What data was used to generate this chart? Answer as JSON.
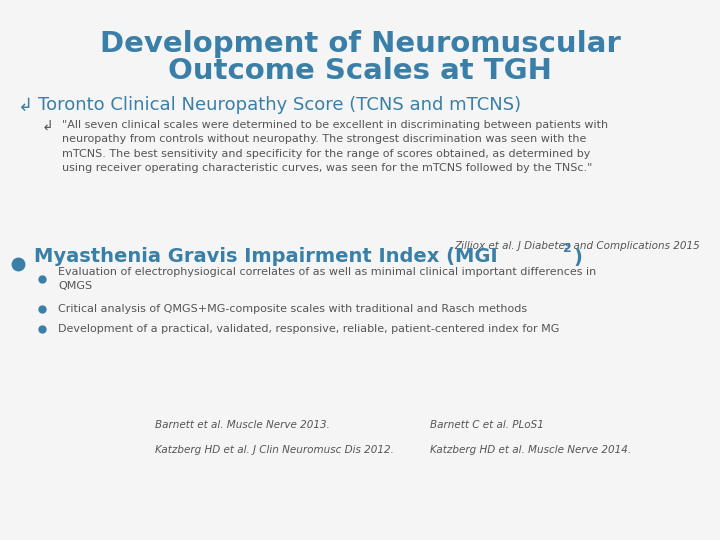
{
  "title_line1": "Development of Neuromuscular",
  "title_line2": "Outcome Scales at TGH",
  "title_color": "#3a7fa8",
  "bg_color": "#f5f5f5",
  "section1_symbol": "↲",
  "section1_text": "Toronto Clinical Neuropathy Score (TCNS and mTCNS)",
  "section1_color": "#3a7fa8",
  "subsection1_symbol": "↲",
  "subsection1_text": "\"All seven clinical scales were determined to be excellent in discriminating between patients with\nneuropathy from controls without neuropathy. The strongest discrimination was seen with the\nmTCNS. The best sensitivity and specificity for the range of scores obtained, as determined by\nusing receiver operating characteristic curves, was seen for the mTCNS followed by the TNSc.\"",
  "subsection1_color": "#555555",
  "citation1": "Zilliox et al. J Diabetes and Complications 2015",
  "citation1_color": "#555555",
  "section2_main": "Myasthenia Gravis Impairment Index (MGI",
  "section2_super": "2",
  "section2_close": ")",
  "section2_color": "#3a7fa8",
  "bullet_color": "#3a7fa8",
  "sub_bullet_texts": [
    "Evaluation of electrophysiogical correlates of as well as minimal clinical important differences in\nQMGS",
    "Critical analysis of QMGS+MG-composite scales with traditional and Rasch methods",
    "Development of a practical, validated, responsive, reliable, patient-centered index for MG"
  ],
  "sub_bullet_color": "#555555",
  "citations_col1": [
    "Barnett et al. Muscle Nerve 2013.",
    "Katzberg HD et al. J Clin Neuromusc Dis 2012."
  ],
  "citations_col2": [
    "Barnett C et al. PLoS1",
    "Katzberg HD et al. Muscle Nerve 2014."
  ],
  "citations_color": "#555555"
}
